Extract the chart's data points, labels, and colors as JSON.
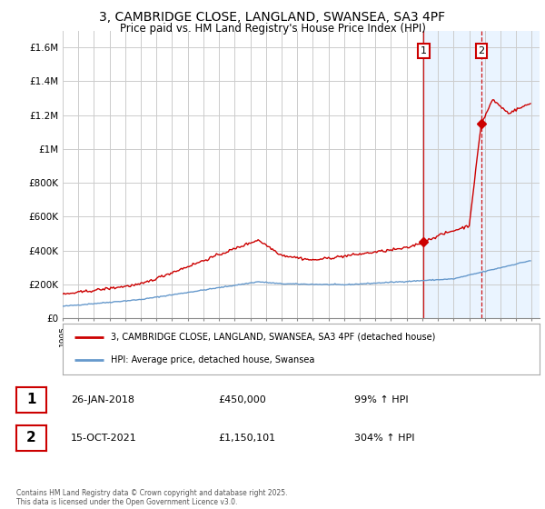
{
  "title_line1": "3, CAMBRIDGE CLOSE, LANGLAND, SWANSEA, SA3 4PF",
  "title_line2": "Price paid vs. HM Land Registry's House Price Index (HPI)",
  "ylabel_ticks": [
    "£0",
    "£200K",
    "£400K",
    "£600K",
    "£800K",
    "£1M",
    "£1.2M",
    "£1.4M",
    "£1.6M"
  ],
  "ytick_values": [
    0,
    200000,
    400000,
    600000,
    800000,
    1000000,
    1200000,
    1400000,
    1600000
  ],
  "ylim": [
    0,
    1700000
  ],
  "xlim_start": 1995,
  "xlim_end": 2025.5,
  "sale1_yr": 2018.08,
  "sale1_price": 450000,
  "sale2_yr": 2021.79,
  "sale2_price": 1150101,
  "legend_line1": "3, CAMBRIDGE CLOSE, LANGLAND, SWANSEA, SA3 4PF (detached house)",
  "legend_line2": "HPI: Average price, detached house, Swansea",
  "red_color": "#cc0000",
  "blue_color": "#6699cc",
  "shade_color": "#ddeeff",
  "grid_color": "#cccccc",
  "bg_plot_color": "#ffffff",
  "copyright_text": "Contains HM Land Registry data © Crown copyright and database right 2025.\nThis data is licensed under the Open Government Licence v3.0."
}
